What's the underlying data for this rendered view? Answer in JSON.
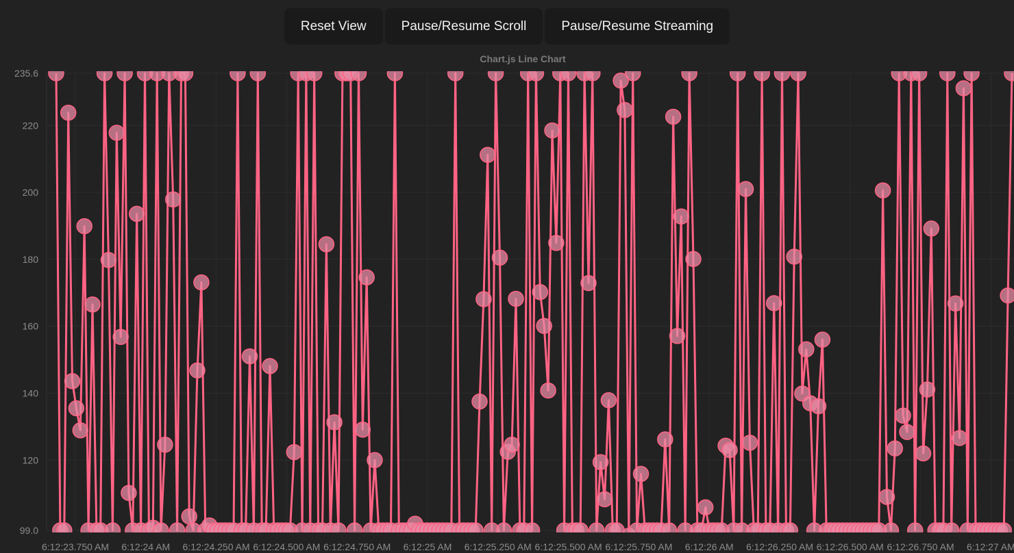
{
  "toolbar": {
    "reset_label": "Reset View",
    "scroll_label": "Pause/Resume Scroll",
    "stream_label": "Pause/Resume Streaming"
  },
  "colors": {
    "background": "#222222",
    "line": "#ff6384",
    "point_fill": "#e88aa4",
    "grid": "#2c2c2c",
    "text": "#8c8c8c"
  },
  "chart_data": {
    "type": "line",
    "title": "Chart.js Line Chart",
    "ylim": [
      99.0,
      235.6
    ],
    "y_ticks": [
      "235.6",
      "220",
      "200",
      "180",
      "160",
      "140",
      "120",
      "99.0"
    ],
    "x_ticks": [
      "6:12:23.750 AM",
      "6:12:24 AM",
      "6:12:24.250 AM",
      "6:12:24.500 AM",
      "6:12:24.750 AM",
      "6:12:25 AM",
      "6:12:25.250 AM",
      "6:12:25.500 AM",
      "6:12:25.750 AM",
      "6:12:26 AM",
      "6:12:26.250 AM",
      "6:12:26.500 AM",
      "6:12:26.750 AM",
      "6:12:27 AM"
    ],
    "grid": true,
    "legend": "none",
    "series": [
      {
        "x_start": "6:12:23.718 AM",
        "step_ms": 10,
        "values": [
          235.6,
          99.0,
          99.0,
          223.8,
          143.6,
          135.5,
          128.9,
          189.9,
          99.0,
          166.5,
          99.0,
          99.0,
          235.6,
          179.8,
          99.0,
          217.8,
          156.8,
          235.6,
          110.2,
          99.0,
          193.6,
          99.0,
          235.6,
          99.0,
          99.8,
          235.6,
          99.0,
          124.6,
          235.6,
          197.9,
          99.0,
          235.6,
          235.6,
          103.2,
          99.0,
          146.8,
          173.1,
          99.0,
          100.5,
          99.0,
          99.0,
          99.0,
          99.0,
          99.0,
          99.0,
          235.6,
          99.0,
          99.0,
          151.0,
          99.0,
          235.6,
          99.0,
          99.0,
          148.1,
          99.0,
          99.0,
          99.0,
          99.0,
          99.0,
          122.4,
          235.6,
          99.0,
          235.6,
          99.0,
          235.6,
          99.0,
          99.0,
          184.5,
          99.0,
          131.3,
          99.0,
          235.6,
          235.6,
          235.6,
          99.0,
          235.6,
          129.1,
          174.6,
          99.0,
          120.0,
          99.0,
          99.0,
          99.0,
          99.0,
          235.6,
          99.0,
          99.0,
          99.0,
          99.0,
          101.0,
          99.0,
          99.0,
          99.0,
          99.0,
          99.0,
          99.0,
          99.0,
          99.0,
          99.0,
          235.6,
          99.0,
          99.0,
          99.0,
          99.0,
          99.0,
          137.5,
          168.1,
          211.2,
          99.0,
          235.6,
          180.5,
          99.0,
          122.5,
          124.6,
          168.2,
          99.0,
          99.0,
          235.6,
          99.0,
          235.6,
          170.2,
          160.1,
          140.8,
          218.5,
          184.9,
          235.6,
          99.0,
          235.6,
          99.0,
          99.0,
          99.0,
          235.6,
          172.9,
          235.6,
          99.0,
          119.4,
          108.3,
          137.9,
          99.0,
          99.0,
          233.4,
          224.6,
          97.4,
          235.6,
          99.0,
          115.9,
          99.0,
          99.0,
          99.0,
          99.0,
          99.0,
          126.2,
          99.0,
          222.6,
          157.1,
          192.8,
          99.0,
          235.6,
          180.1,
          99.0,
          99.0,
          105.9,
          99.0,
          99.0,
          99.0,
          99.0,
          124.3,
          123.0,
          99.0,
          235.6,
          99.0,
          201.0,
          125.2,
          99.0,
          99.0,
          235.6,
          99.0,
          99.0,
          166.9,
          99.0,
          235.6,
          99.0,
          99.0,
          180.8,
          235.6,
          139.9,
          153.1,
          137.0,
          99.0,
          136.1,
          156.0,
          99.0,
          99.0,
          99.0,
          99.0,
          99.0,
          99.0,
          99.0,
          99.0,
          99.0,
          99.0,
          99.0,
          99.0,
          99.0,
          99.0,
          200.6,
          109.0,
          99.0,
          123.5,
          235.6,
          133.3,
          128.4,
          235.6,
          99.0,
          235.6,
          122.0,
          141.1,
          189.2,
          99.0,
          99.0,
          99.0,
          235.6,
          99.0,
          166.8,
          126.6,
          231.1,
          99.0,
          235.6,
          99.0,
          99.0,
          99.0,
          99.0,
          99.0,
          99.0,
          99.0,
          99.0,
          169.2,
          235.6
        ]
      }
    ]
  }
}
